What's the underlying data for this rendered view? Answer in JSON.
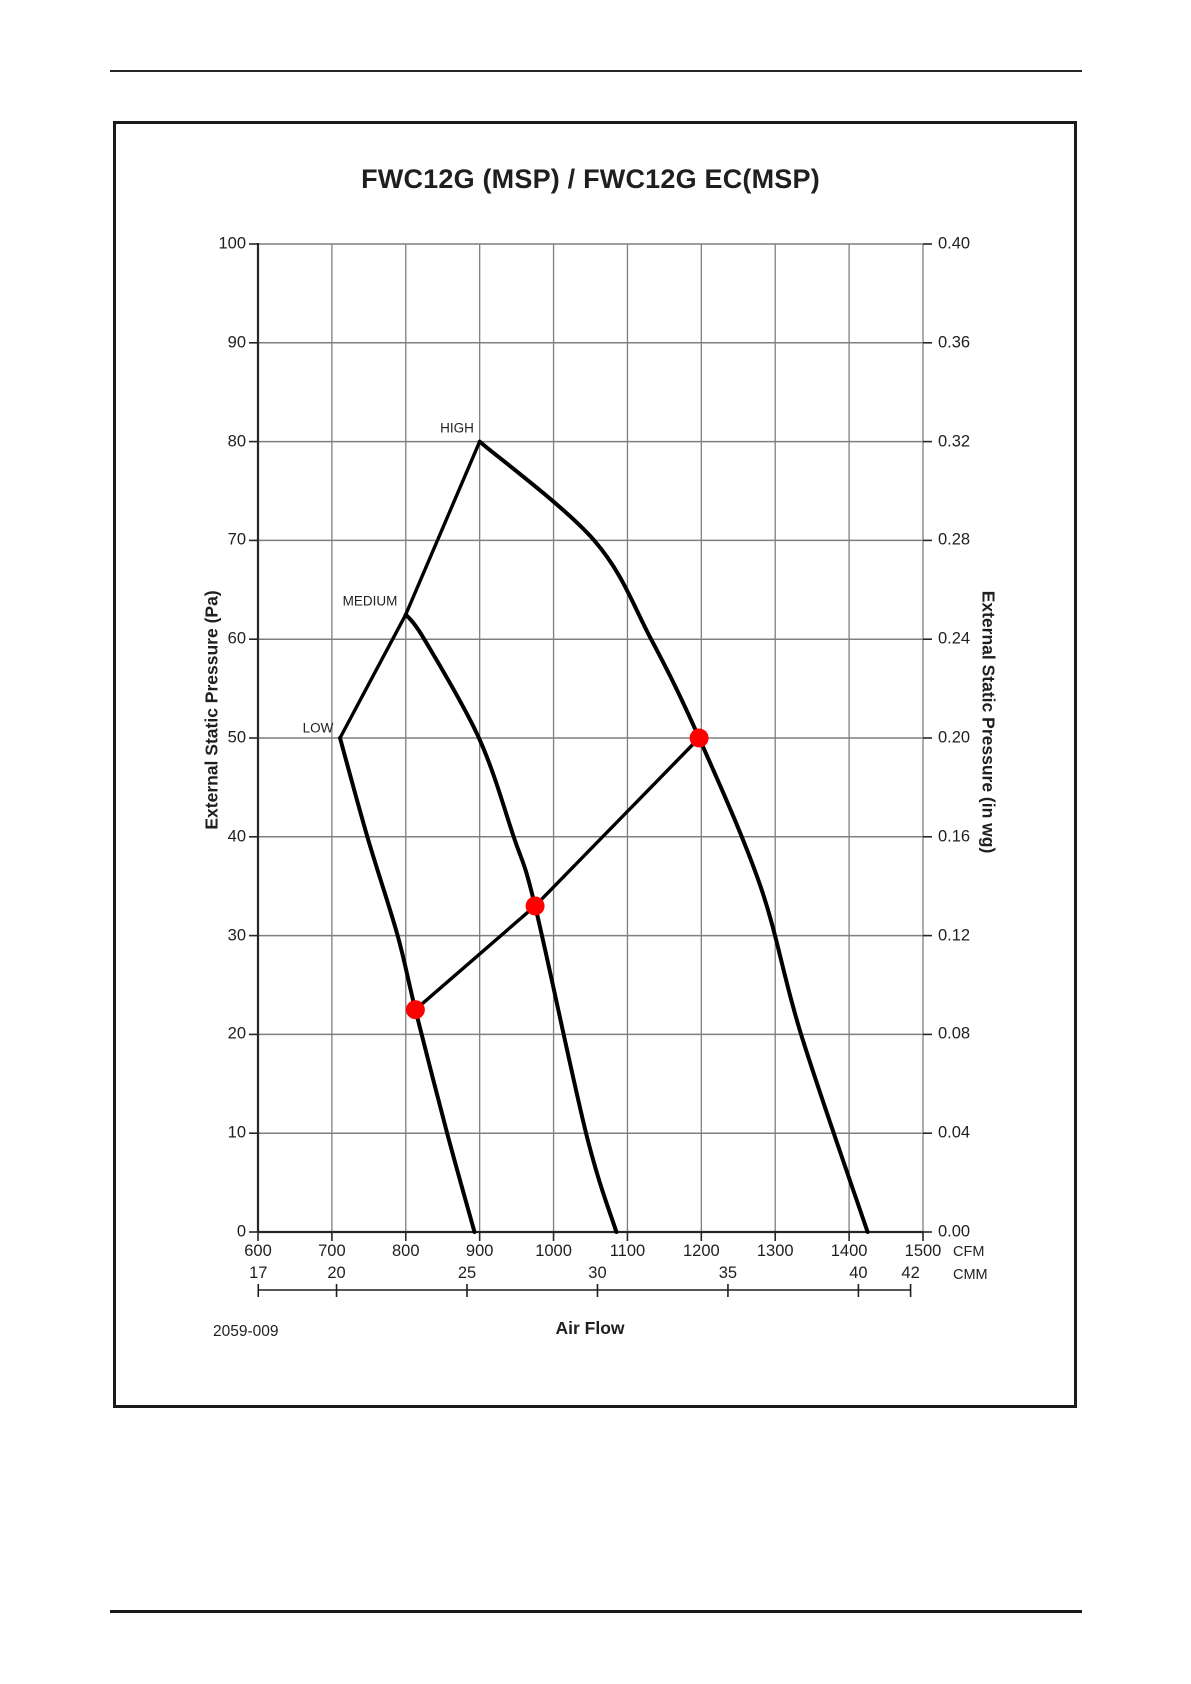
{
  "page": {
    "footnote": "2059-009"
  },
  "chart_data": {
    "type": "line",
    "title": "FWC12G (MSP) / FWC12G EC(MSP)",
    "x_axis": {
      "label": "Air Flow",
      "primary_unit": "CFM",
      "primary_ticks": [
        600,
        700,
        800,
        900,
        1000,
        1100,
        1200,
        1300,
        1400,
        1500
      ],
      "primary_range": [
        600,
        1500
      ],
      "secondary_unit": "CMM",
      "secondary_ticks": [
        17,
        20,
        25,
        30,
        35,
        40,
        42
      ],
      "cfm_per_cmm": 35.3147
    },
    "y_axis_left": {
      "label": "External Static Pressure (Pa)",
      "ticks": [
        0,
        10,
        20,
        30,
        40,
        50,
        60,
        70,
        80,
        90,
        100
      ],
      "range": [
        0,
        100
      ]
    },
    "y_axis_right": {
      "label": "External Static Pressure (in wg)",
      "ticks": [
        "0.00",
        "0.04",
        "0.08",
        "0.12",
        "0.16",
        "0.20",
        "0.24",
        "0.28",
        "0.32",
        "0.36",
        "0.40"
      ],
      "range": [
        0,
        0.4
      ]
    },
    "grid": true,
    "legend": "labels at curve peaks",
    "series": [
      {
        "name": "HIGH",
        "kind": "fan-curve",
        "smooth": true,
        "points_cfm_pa": [
          [
            900,
            80
          ],
          [
            1055,
            70
          ],
          [
            1132,
            60
          ],
          [
            1197,
            50
          ],
          [
            1280,
            35
          ],
          [
            1335,
            20
          ],
          [
            1425,
            0
          ]
        ]
      },
      {
        "name": "MEDIUM",
        "kind": "fan-curve",
        "smooth": true,
        "points_cfm_pa": [
          [
            800,
            62.5
          ],
          [
            825,
            60
          ],
          [
            899,
            50
          ],
          [
            946,
            40
          ],
          [
            975,
            33
          ],
          [
            1044,
            10
          ],
          [
            1085,
            0
          ]
        ]
      },
      {
        "name": "LOW",
        "kind": "fan-curve",
        "smooth": true,
        "points_cfm_pa": [
          [
            711,
            50
          ],
          [
            748,
            40
          ],
          [
            789,
            30
          ],
          [
            813,
            22.5
          ],
          [
            856,
            10
          ],
          [
            893,
            0
          ]
        ]
      },
      {
        "name": "speed envelope",
        "kind": "connector",
        "smooth": false,
        "points_cfm_pa": [
          [
            711,
            50
          ],
          [
            800,
            62.5
          ],
          [
            900,
            80
          ]
        ]
      },
      {
        "name": "operating line",
        "kind": "connector",
        "smooth": false,
        "points_cfm_pa": [
          [
            813,
            22.5
          ],
          [
            975,
            33
          ],
          [
            1197,
            50
          ]
        ]
      }
    ],
    "operating_points_cfm_pa": [
      [
        813,
        22.5
      ],
      [
        975,
        33
      ],
      [
        1197,
        50
      ]
    ],
    "colors": {
      "curve": "#000000",
      "grid_major": "#7f7f7f",
      "axis": "#262626",
      "operating_point": "#fe0000"
    }
  }
}
